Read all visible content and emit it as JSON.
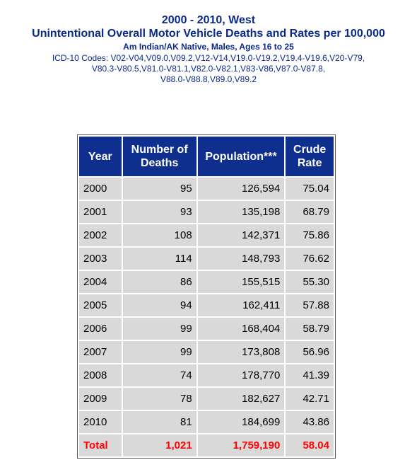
{
  "title_line1": "2000 - 2010, West",
  "title_line2": "Unintentional Overall Motor Vehicle Deaths and Rates per 100,000",
  "subtitle": "Am Indian/AK Native, Males, Ages 16 to 25",
  "icd_codes": [
    "ICD-10 Codes: V02-V04,V09.0,V09.2,V12-V14,V19.0-V19.2,V19.4-V19.6,V20-V79,",
    "V80.3-V80.5,V81.0-V81.1,V82.0-V82.1,V83-V86,V87.0-V87.8,",
    "V88.0-V88.8,V89.0,V89.2"
  ],
  "table": {
    "headers": [
      "Year",
      "Number of Deaths",
      "Population***",
      "Crude Rate"
    ],
    "rows": [
      [
        "2000",
        "95",
        "126,594",
        "75.04"
      ],
      [
        "2001",
        "93",
        "135,198",
        "68.79"
      ],
      [
        "2002",
        "108",
        "142,371",
        "75.86"
      ],
      [
        "2003",
        "114",
        "148,793",
        "76.62"
      ],
      [
        "2004",
        "86",
        "155,515",
        "55.30"
      ],
      [
        "2005",
        "94",
        "162,411",
        "57.88"
      ],
      [
        "2006",
        "99",
        "168,404",
        "58.79"
      ],
      [
        "2007",
        "99",
        "173,808",
        "56.96"
      ],
      [
        "2008",
        "74",
        "178,770",
        "41.39"
      ],
      [
        "2009",
        "78",
        "182,627",
        "42.71"
      ],
      [
        "2010",
        "81",
        "184,699",
        "43.86"
      ]
    ],
    "total": [
      "Total",
      "1,021",
      "1,759,190",
      "58.04"
    ]
  },
  "colors": {
    "title": "#0a2a8c",
    "header_bg": "#0f2f8f",
    "cell_bg": "#d9d9d9",
    "total_text": "#ff0000"
  }
}
